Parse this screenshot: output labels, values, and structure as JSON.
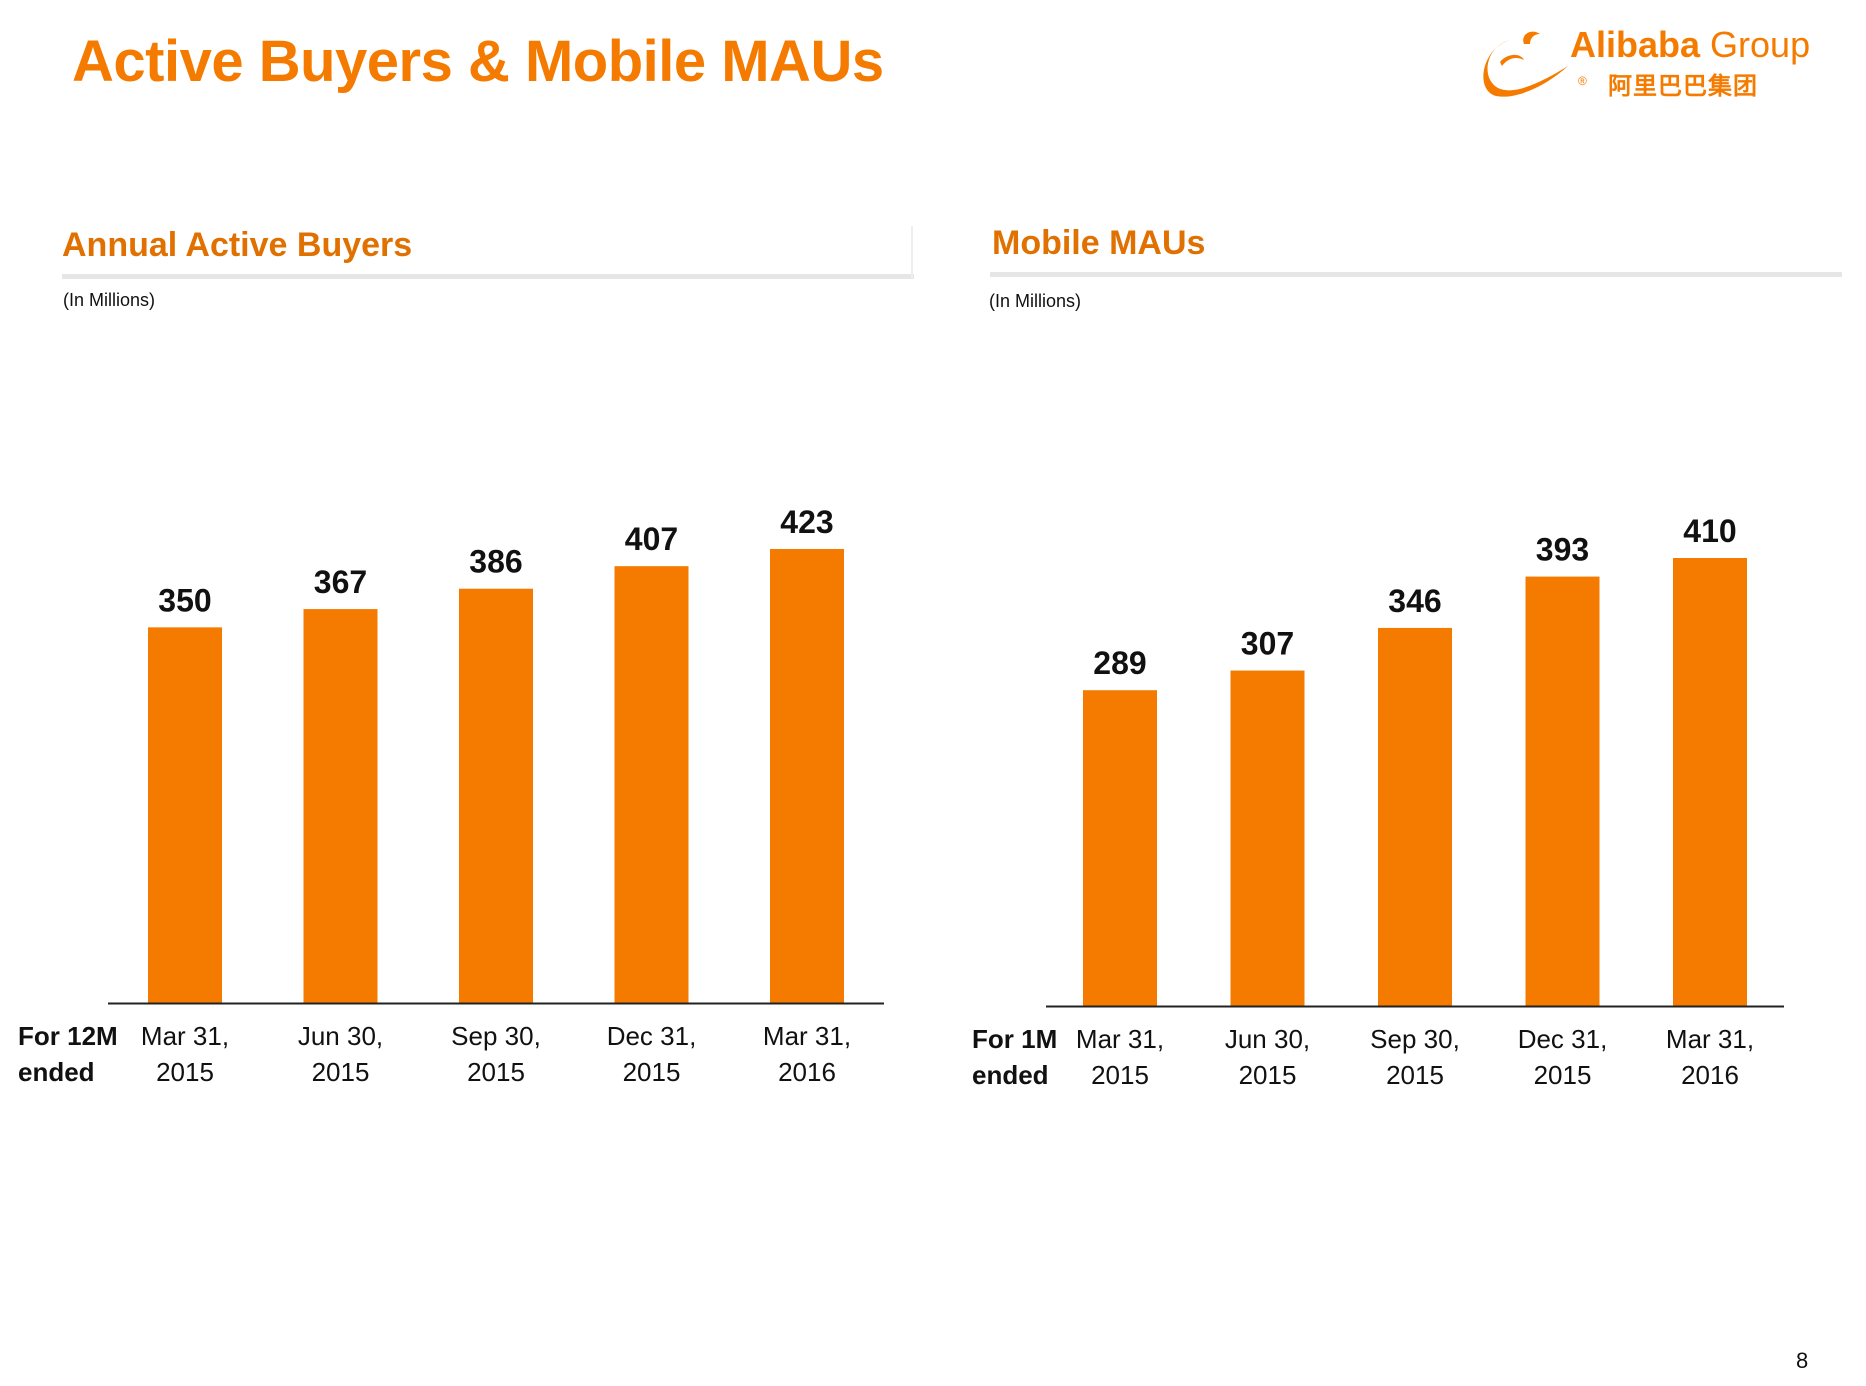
{
  "slide": {
    "title": "Active Buyers & Mobile MAUs",
    "page_number": "8"
  },
  "logo": {
    "brand": "Alibaba",
    "group": " Group",
    "chinese": "阿里巴巴集团",
    "registered": "®",
    "color": "#f47b00"
  },
  "colors": {
    "bar": "#f47b00",
    "title": "#f47b00",
    "axis": "#222222"
  },
  "chart_data": [
    {
      "type": "bar",
      "title": "Annual Active Buyers",
      "unit_label": "(In Millions)",
      "x_prefix": [
        "For 12M",
        "ended"
      ],
      "categories": [
        [
          "Mar 31,",
          "2015"
        ],
        [
          "Jun 30,",
          "2015"
        ],
        [
          "Sep 30,",
          "2015"
        ],
        [
          "Dec 31,",
          "2015"
        ],
        [
          "Mar 31,",
          "2016"
        ]
      ],
      "values": [
        350,
        367,
        386,
        407,
        423
      ],
      "data_labels": [
        "350",
        "367",
        "386",
        "407",
        "423"
      ],
      "ylim": [
        0,
        423
      ],
      "grid": false,
      "legend": "none"
    },
    {
      "type": "bar",
      "title": "Mobile MAUs",
      "unit_label": "(In Millions)",
      "x_prefix": [
        "For 1M",
        "ended"
      ],
      "categories": [
        [
          "Mar 31,",
          "2015"
        ],
        [
          "Jun 30,",
          "2015"
        ],
        [
          "Sep 30,",
          "2015"
        ],
        [
          "Dec 31,",
          "2015"
        ],
        [
          "Mar 31,",
          "2016"
        ]
      ],
      "values": [
        289,
        307,
        346,
        393,
        410
      ],
      "data_labels": [
        "289",
        "307",
        "346",
        "393",
        "410"
      ],
      "ylim": [
        0,
        410
      ],
      "grid": false,
      "legend": "none"
    }
  ]
}
